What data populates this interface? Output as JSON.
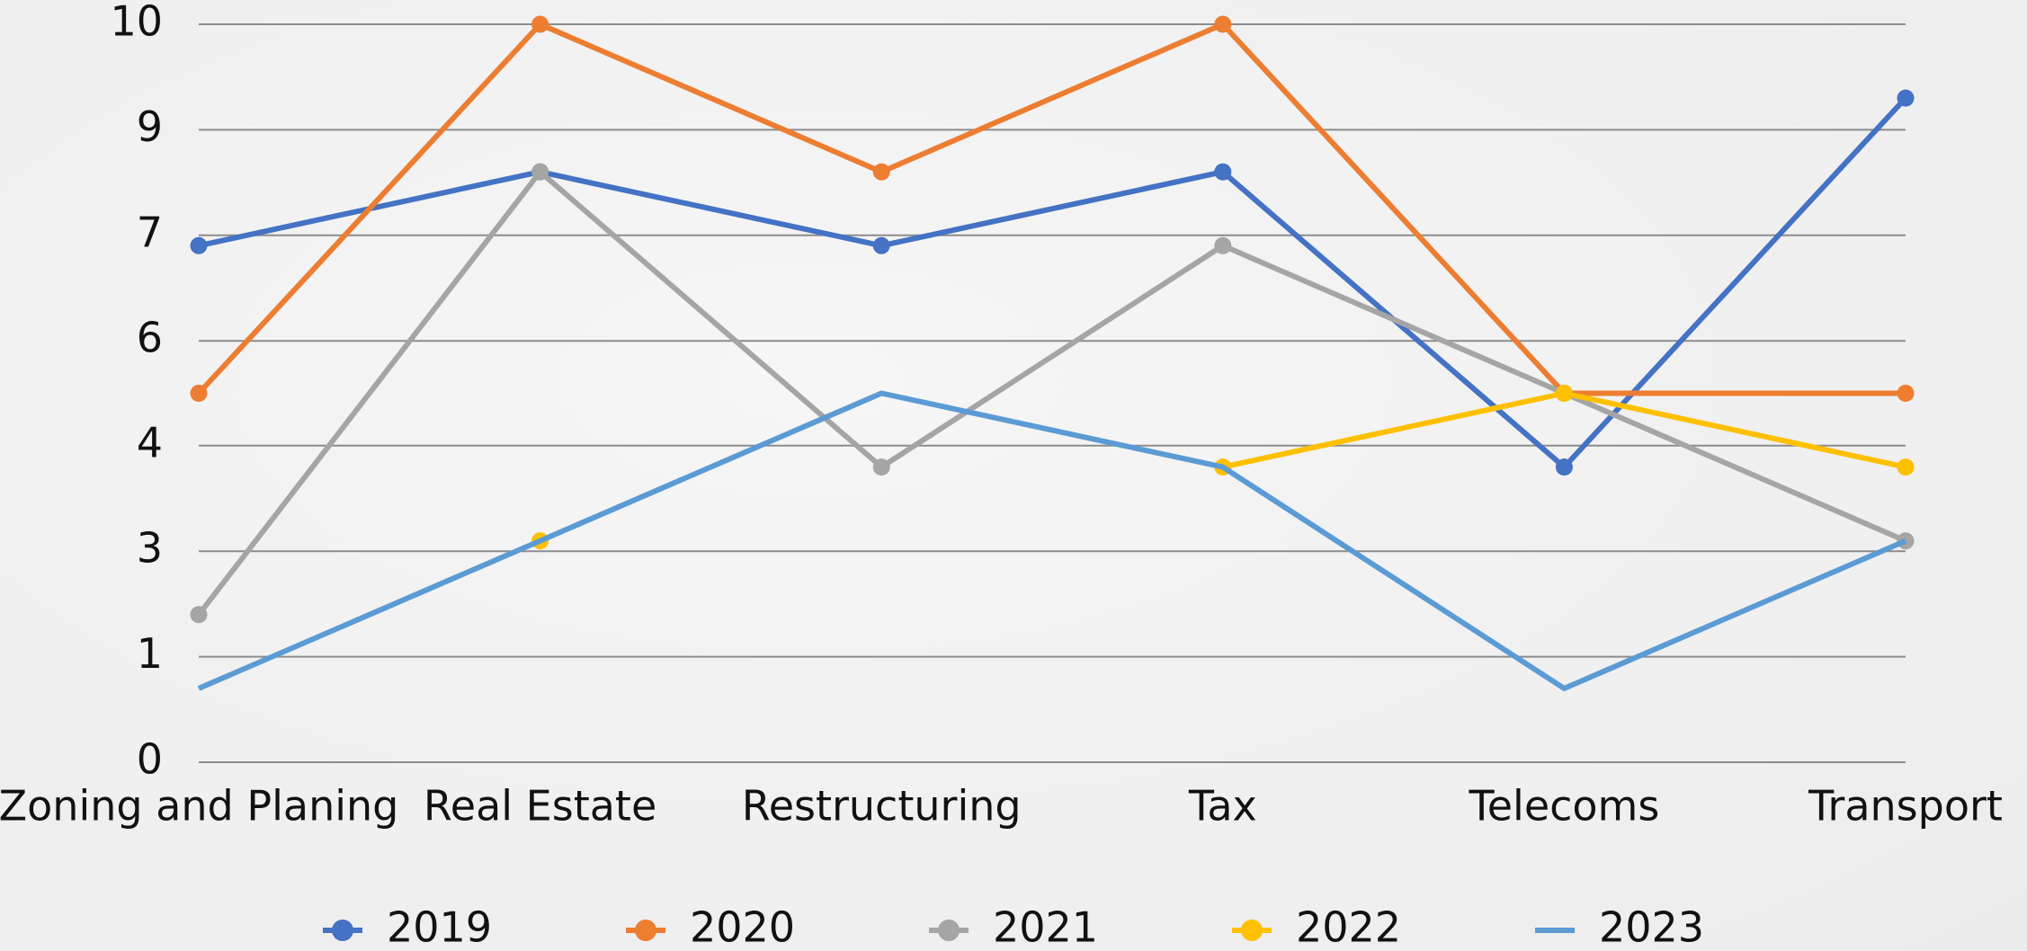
{
  "chart_data": {
    "type": "line",
    "categories": [
      "Zoning and Planing",
      "Real Estate",
      "Restructuring",
      "Tax",
      "Telecoms",
      "Transport"
    ],
    "series": [
      {
        "name": "2019",
        "color": "#4472c4",
        "marker": true,
        "values": [
          7,
          8,
          7,
          8,
          4,
          9
        ]
      },
      {
        "name": "2020",
        "color": "#ed7d31",
        "marker": true,
        "values": [
          5,
          10,
          8,
          10,
          5,
          5
        ]
      },
      {
        "name": "2021",
        "color": "#a5a5a5",
        "marker": true,
        "values": [
          2,
          8,
          4,
          7,
          5,
          3
        ]
      },
      {
        "name": "2022",
        "color": "#ffc000",
        "marker": true,
        "values": [
          null,
          3,
          null,
          4,
          5,
          4
        ]
      },
      {
        "name": "2023",
        "color": "#5b9bd5",
        "marker": false,
        "values": [
          1,
          3,
          5,
          4,
          1,
          3
        ]
      }
    ],
    "ylim": [
      0,
      10
    ],
    "yticks": [
      0,
      {
        "value": 1.43,
        "label": "1"
      },
      {
        "value": 2.86,
        "label": "3"
      },
      {
        "value": 4.29,
        "label": "4"
      },
      {
        "value": 5.71,
        "label": "6"
      },
      {
        "value": 7.14,
        "label": "7"
      },
      {
        "value": 8.57,
        "label": "9"
      },
      10
    ],
    "grid": true,
    "legend": "bottom"
  }
}
